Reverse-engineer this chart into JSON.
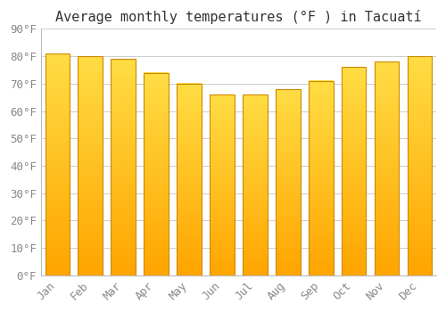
{
  "title": "Average monthly temperatures (°F ) in Tacuatí",
  "months": [
    "Jan",
    "Feb",
    "Mar",
    "Apr",
    "May",
    "Jun",
    "Jul",
    "Aug",
    "Sep",
    "Oct",
    "Nov",
    "Dec"
  ],
  "values": [
    81,
    80,
    79,
    74,
    70,
    66,
    66,
    68,
    71,
    76,
    78,
    80
  ],
  "bar_color_top": "#FFDD44",
  "bar_color_bottom": "#FFA500",
  "bar_edge_color": "#CC8800",
  "background_color": "#ffffff",
  "plot_bg_color": "#ffffff",
  "grid_color": "#cccccc",
  "ylim": [
    0,
    90
  ],
  "yticks": [
    0,
    10,
    20,
    30,
    40,
    50,
    60,
    70,
    80,
    90
  ],
  "ytick_labels": [
    "0°F",
    "10°F",
    "20°F",
    "30°F",
    "40°F",
    "50°F",
    "60°F",
    "70°F",
    "80°F",
    "90°F"
  ],
  "title_fontsize": 11,
  "tick_fontsize": 9,
  "font_family": "monospace",
  "bar_width": 0.75,
  "label_color": "#888888",
  "title_color": "#333333"
}
